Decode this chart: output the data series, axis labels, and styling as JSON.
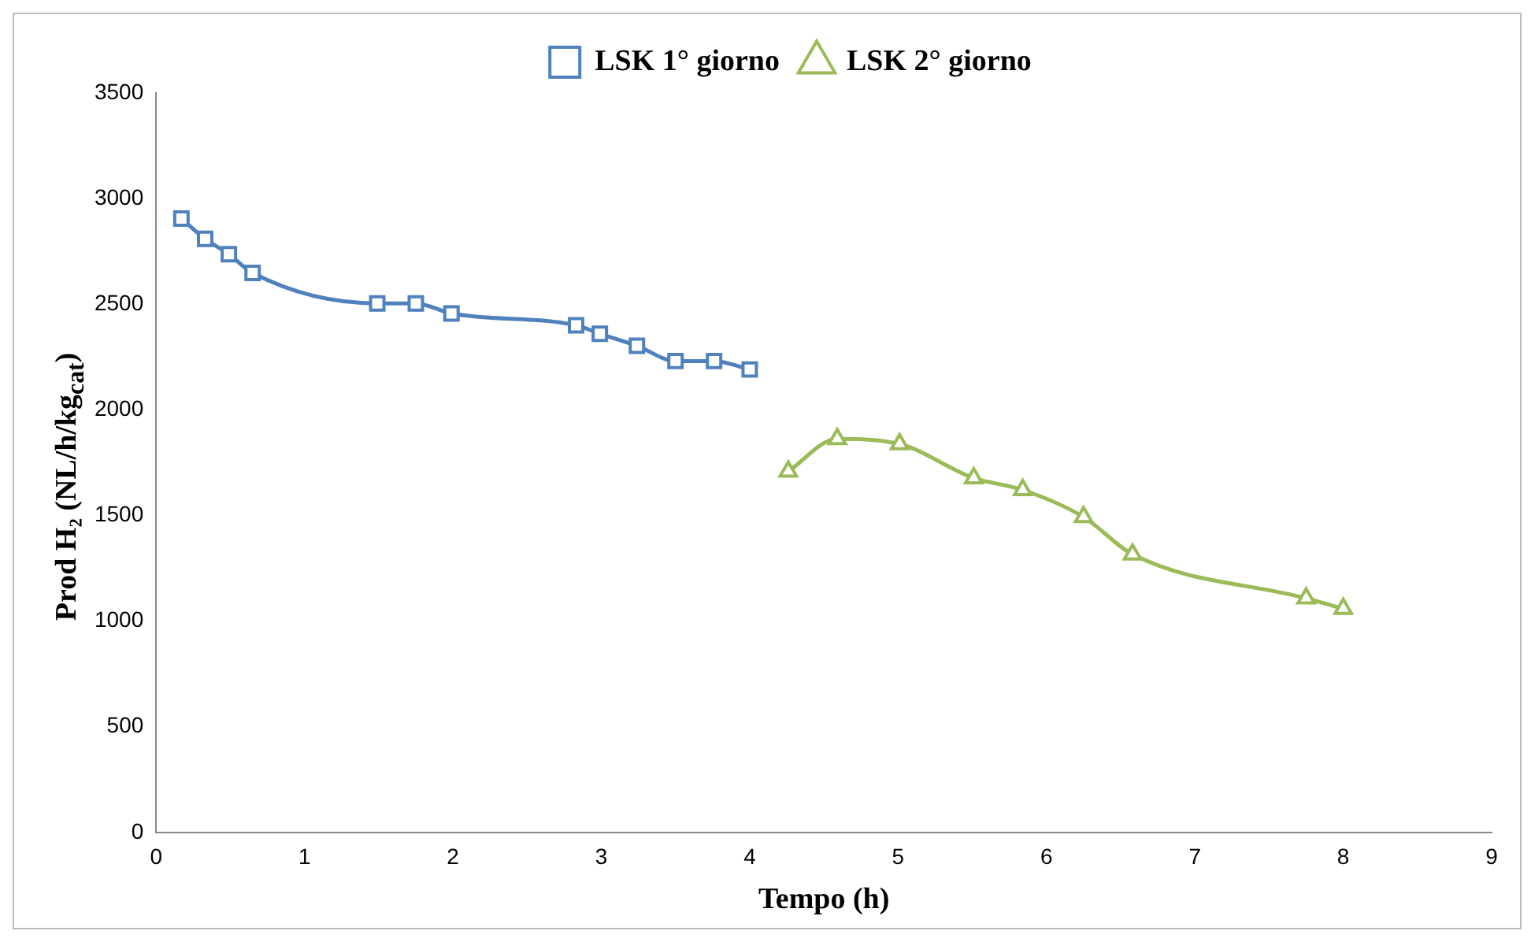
{
  "chart_data": {
    "type": "line",
    "xlabel": "Tempo (h)",
    "ylabel": "Prod H₂ (NL/h/kg$_{cat}$)",
    "xlim": [
      0,
      9
    ],
    "xticks": [
      0,
      1,
      2,
      3,
      4,
      5,
      6,
      7,
      8,
      9
    ],
    "ylim": [
      0,
      3500
    ],
    "yticks": [
      0,
      500,
      1000,
      1500,
      2000,
      2500,
      3000,
      3500
    ],
    "grid": false,
    "legend": "top",
    "line_style": "solid",
    "series": [
      {
        "name": "LSK 1° giorno",
        "color": "#4f81bd",
        "marker": "square",
        "x": [
          0.17,
          0.33,
          0.49,
          0.65,
          1.49,
          1.75,
          1.99,
          2.83,
          2.99,
          3.24,
          3.5,
          3.76,
          4.0
        ],
        "values": [
          2905,
          2809,
          2737,
          2648,
          2504,
          2504,
          2456,
          2400,
          2360,
          2303,
          2231,
          2231,
          2191
        ]
      },
      {
        "name": "LSK 2° giorno",
        "color": "#9bbb59",
        "marker": "triangle",
        "x": [
          4.26,
          4.59,
          5.01,
          5.51,
          5.84,
          6.25,
          6.58,
          7.75,
          8.0
        ],
        "values": [
          1709,
          1862,
          1838,
          1677,
          1621,
          1493,
          1316,
          1108,
          1059
        ]
      }
    ]
  }
}
